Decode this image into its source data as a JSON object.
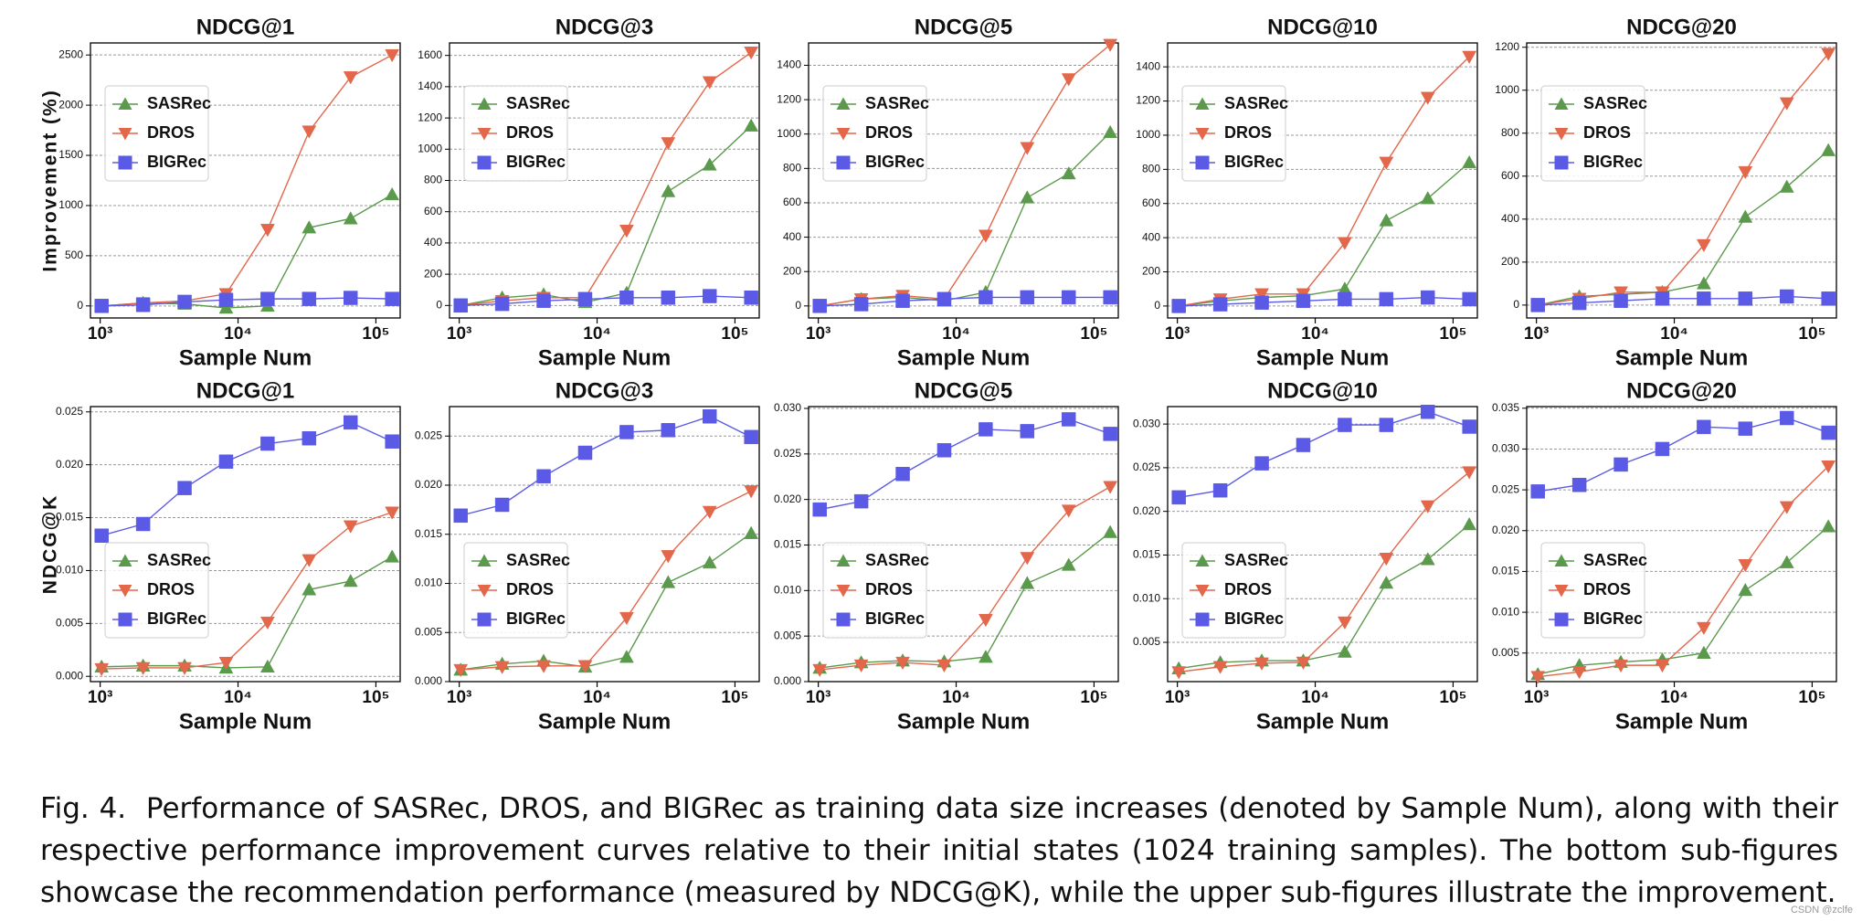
{
  "chart_data": [
    {
      "type": "line",
      "title": "NDCG@1",
      "xlabel": "Sample Num",
      "ylabel": "Improvement (%)",
      "log_x": true,
      "grid": true,
      "legend": "upper left",
      "x": [
        1024,
        2048,
        4096,
        8192,
        16384,
        32768,
        65536,
        131072
      ],
      "xlim": [
        850,
        150000
      ],
      "xticks": [
        {
          "value": 1000,
          "label": "10³"
        },
        {
          "value": 10000,
          "label": "10⁴"
        },
        {
          "value": 100000,
          "label": "10⁵"
        }
      ],
      "ylim": [
        -120,
        2620
      ],
      "yticks": [
        0,
        500,
        1000,
        1500,
        2000,
        2500
      ],
      "series": [
        {
          "name": "SASRec",
          "color": "#5b9a4c",
          "marker": "triangle-up",
          "values": [
            0,
            30,
            20,
            -20,
            0,
            780,
            870,
            1110
          ]
        },
        {
          "name": "DROS",
          "color": "#e2674b",
          "marker": "triangle-down",
          "values": [
            0,
            30,
            50,
            120,
            760,
            1740,
            2280,
            2500
          ]
        },
        {
          "name": "BIGRec",
          "color": "#5a5ae6",
          "marker": "square",
          "values": [
            0,
            10,
            40,
            60,
            70,
            70,
            80,
            70
          ]
        }
      ]
    },
    {
      "type": "line",
      "title": "NDCG@3",
      "xlabel": "Sample Num",
      "log_x": true,
      "grid": true,
      "legend": "upper left",
      "x": [
        1024,
        2048,
        4096,
        8192,
        16384,
        32768,
        65536,
        131072
      ],
      "xlim": [
        850,
        150000
      ],
      "xticks": [
        {
          "value": 1000,
          "label": "10³"
        },
        {
          "value": 10000,
          "label": "10⁴"
        },
        {
          "value": 100000,
          "label": "10⁵"
        }
      ],
      "ylim": [
        -80,
        1680
      ],
      "yticks": [
        0,
        200,
        400,
        600,
        800,
        1000,
        1200,
        1400,
        1600
      ],
      "series": [
        {
          "name": "SASRec",
          "color": "#5b9a4c",
          "marker": "triangle-up",
          "values": [
            0,
            50,
            70,
            20,
            80,
            730,
            900,
            1150
          ]
        },
        {
          "name": "DROS",
          "color": "#e2674b",
          "marker": "triangle-down",
          "values": [
            0,
            30,
            50,
            50,
            480,
            1040,
            1430,
            1620
          ]
        },
        {
          "name": "BIGRec",
          "color": "#5a5ae6",
          "marker": "square",
          "values": [
            0,
            10,
            30,
            40,
            50,
            50,
            60,
            50
          ]
        }
      ]
    },
    {
      "type": "line",
      "title": "NDCG@5",
      "xlabel": "Sample Num",
      "log_x": true,
      "grid": true,
      "legend": "upper left",
      "x": [
        1024,
        2048,
        4096,
        8192,
        16384,
        32768,
        65536,
        131072
      ],
      "xlim": [
        850,
        150000
      ],
      "xticks": [
        {
          "value": 1000,
          "label": "10³"
        },
        {
          "value": 10000,
          "label": "10⁴"
        },
        {
          "value": 100000,
          "label": "10⁵"
        }
      ],
      "ylim": [
        -70,
        1530
      ],
      "yticks": [
        0,
        200,
        400,
        600,
        800,
        1000,
        1200,
        1400
      ],
      "series": [
        {
          "name": "SASRec",
          "color": "#5b9a4c",
          "marker": "triangle-up",
          "values": [
            0,
            40,
            50,
            30,
            80,
            630,
            770,
            1010
          ]
        },
        {
          "name": "DROS",
          "color": "#e2674b",
          "marker": "triangle-down",
          "values": [
            0,
            40,
            60,
            40,
            410,
            920,
            1320,
            1520
          ]
        },
        {
          "name": "BIGRec",
          "color": "#5a5ae6",
          "marker": "square",
          "values": [
            0,
            10,
            30,
            40,
            50,
            50,
            50,
            50
          ]
        }
      ]
    },
    {
      "type": "line",
      "title": "NDCG@10",
      "xlabel": "Sample Num",
      "log_x": true,
      "grid": true,
      "legend": "upper left",
      "x": [
        1024,
        2048,
        4096,
        8192,
        16384,
        32768,
        65536,
        131072
      ],
      "xlim": [
        850,
        150000
      ],
      "xticks": [
        {
          "value": 1000,
          "label": "10³"
        },
        {
          "value": 10000,
          "label": "10⁴"
        },
        {
          "value": 100000,
          "label": "10⁵"
        }
      ],
      "ylim": [
        -70,
        1540
      ],
      "yticks": [
        0,
        200,
        400,
        600,
        800,
        1000,
        1200,
        1400
      ],
      "series": [
        {
          "name": "SASRec",
          "color": "#5b9a4c",
          "marker": "triangle-up",
          "values": [
            0,
            30,
            50,
            60,
            100,
            500,
            630,
            840
          ]
        },
        {
          "name": "DROS",
          "color": "#e2674b",
          "marker": "triangle-down",
          "values": [
            0,
            40,
            70,
            70,
            370,
            840,
            1220,
            1460
          ]
        },
        {
          "name": "BIGRec",
          "color": "#5a5ae6",
          "marker": "square",
          "values": [
            0,
            10,
            20,
            30,
            40,
            40,
            50,
            40
          ]
        }
      ]
    },
    {
      "type": "line",
      "title": "NDCG@20",
      "xlabel": "Sample Num",
      "log_x": true,
      "grid": true,
      "legend": "upper left",
      "x": [
        1024,
        2048,
        4096,
        8192,
        16384,
        32768,
        65536,
        131072
      ],
      "xlim": [
        850,
        150000
      ],
      "xticks": [
        {
          "value": 1000,
          "label": "10³"
        },
        {
          "value": 10000,
          "label": "10⁴"
        },
        {
          "value": 100000,
          "label": "10⁵"
        }
      ],
      "ylim": [
        -60,
        1220
      ],
      "yticks": [
        0,
        200,
        400,
        600,
        800,
        1000,
        1200
      ],
      "series": [
        {
          "name": "SASRec",
          "color": "#5b9a4c",
          "marker": "triangle-up",
          "values": [
            0,
            40,
            50,
            60,
            100,
            410,
            550,
            720
          ]
        },
        {
          "name": "DROS",
          "color": "#e2674b",
          "marker": "triangle-down",
          "values": [
            0,
            30,
            60,
            60,
            280,
            620,
            940,
            1170
          ]
        },
        {
          "name": "BIGRec",
          "color": "#5a5ae6",
          "marker": "square",
          "values": [
            0,
            10,
            20,
            30,
            30,
            30,
            40,
            30
          ]
        }
      ]
    },
    {
      "type": "line",
      "title": "NDCG@1",
      "xlabel": "Sample Num",
      "ylabel": "NDCG@K",
      "log_x": true,
      "grid": true,
      "legend": "lower left",
      "x": [
        1024,
        2048,
        4096,
        8192,
        16384,
        32768,
        65536,
        131072
      ],
      "xlim": [
        850,
        150000
      ],
      "xticks": [
        {
          "value": 1000,
          "label": "10³"
        },
        {
          "value": 10000,
          "label": "10⁴"
        },
        {
          "value": 100000,
          "label": "10⁵"
        }
      ],
      "ylim": [
        -0.0005,
        0.0255
      ],
      "yticks": [
        {
          "value": 0,
          "label": "0.000"
        },
        {
          "value": 0.005,
          "label": "0.005"
        },
        {
          "value": 0.01,
          "label": "0.010"
        },
        {
          "value": 0.015,
          "label": "0.015"
        },
        {
          "value": 0.02,
          "label": "0.020"
        },
        {
          "value": 0.025,
          "label": "0.025"
        }
      ],
      "series": [
        {
          "name": "SASRec",
          "color": "#5b9a4c",
          "marker": "triangle-up",
          "values": [
            0.0009,
            0.001,
            0.001,
            0.0008,
            0.0009,
            0.0082,
            0.009,
            0.0113
          ]
        },
        {
          "name": "DROS",
          "color": "#e2674b",
          "marker": "triangle-down",
          "values": [
            0.0007,
            0.0008,
            0.0008,
            0.0013,
            0.0051,
            0.011,
            0.0142,
            0.0155
          ]
        },
        {
          "name": "BIGRec",
          "color": "#5a5ae6",
          "marker": "square",
          "values": [
            0.0133,
            0.0144,
            0.0178,
            0.0203,
            0.022,
            0.0225,
            0.024,
            0.0222
          ]
        }
      ]
    },
    {
      "type": "line",
      "title": "NDCG@3",
      "xlabel": "Sample Num",
      "log_x": true,
      "grid": true,
      "legend": "lower left",
      "x": [
        1024,
        2048,
        4096,
        8192,
        16384,
        32768,
        65536,
        131072
      ],
      "xlim": [
        850,
        150000
      ],
      "xticks": [
        {
          "value": 1000,
          "label": "10³"
        },
        {
          "value": 10000,
          "label": "10⁴"
        },
        {
          "value": 100000,
          "label": "10⁵"
        }
      ],
      "ylim": [
        0,
        0.028
      ],
      "yticks": [
        {
          "value": 0,
          "label": "0.000"
        },
        {
          "value": 0.005,
          "label": "0.005"
        },
        {
          "value": 0.01,
          "label": "0.010"
        },
        {
          "value": 0.015,
          "label": "0.015"
        },
        {
          "value": 0.02,
          "label": "0.020"
        },
        {
          "value": 0.025,
          "label": "0.025"
        }
      ],
      "series": [
        {
          "name": "SASRec",
          "color": "#5b9a4c",
          "marker": "triangle-up",
          "values": [
            0.0012,
            0.0018,
            0.0021,
            0.0015,
            0.0025,
            0.0101,
            0.0121,
            0.0151
          ]
        },
        {
          "name": "DROS",
          "color": "#e2674b",
          "marker": "triangle-down",
          "values": [
            0.0012,
            0.0015,
            0.0016,
            0.0016,
            0.0065,
            0.0128,
            0.0173,
            0.0194
          ]
        },
        {
          "name": "BIGRec",
          "color": "#5a5ae6",
          "marker": "square",
          "values": [
            0.0169,
            0.018,
            0.0209,
            0.0233,
            0.0254,
            0.0256,
            0.027,
            0.0249
          ]
        }
      ]
    },
    {
      "type": "line",
      "title": "NDCG@5",
      "xlabel": "Sample Num",
      "log_x": true,
      "grid": true,
      "legend": "lower left",
      "x": [
        1024,
        2048,
        4096,
        8192,
        16384,
        32768,
        65536,
        131072
      ],
      "xlim": [
        850,
        150000
      ],
      "xticks": [
        {
          "value": 1000,
          "label": "10³"
        },
        {
          "value": 10000,
          "label": "10⁴"
        },
        {
          "value": 100000,
          "label": "10⁵"
        }
      ],
      "ylim": [
        0,
        0.0302
      ],
      "yticks": [
        {
          "value": 0,
          "label": "0.000"
        },
        {
          "value": 0.005,
          "label": "0.005"
        },
        {
          "value": 0.01,
          "label": "0.010"
        },
        {
          "value": 0.015,
          "label": "0.015"
        },
        {
          "value": 0.02,
          "label": "0.020"
        },
        {
          "value": 0.025,
          "label": "0.025"
        },
        {
          "value": 0.03,
          "label": "0.030"
        }
      ],
      "series": [
        {
          "name": "SASRec",
          "color": "#5b9a4c",
          "marker": "triangle-up",
          "values": [
            0.0015,
            0.0021,
            0.0023,
            0.0022,
            0.0027,
            0.0108,
            0.0128,
            0.0164
          ]
        },
        {
          "name": "DROS",
          "color": "#e2674b",
          "marker": "triangle-down",
          "values": [
            0.0013,
            0.0018,
            0.0021,
            0.0018,
            0.0068,
            0.0136,
            0.0188,
            0.0214
          ]
        },
        {
          "name": "BIGRec",
          "color": "#5a5ae6",
          "marker": "square",
          "values": [
            0.0189,
            0.0198,
            0.0228,
            0.0254,
            0.0277,
            0.0275,
            0.0288,
            0.0272
          ]
        }
      ]
    },
    {
      "type": "line",
      "title": "NDCG@10",
      "xlabel": "Sample Num",
      "log_x": true,
      "grid": true,
      "legend": "lower left",
      "x": [
        1024,
        2048,
        4096,
        8192,
        16384,
        32768,
        65536,
        131072
      ],
      "xlim": [
        850,
        150000
      ],
      "xticks": [
        {
          "value": 1000,
          "label": "10³"
        },
        {
          "value": 10000,
          "label": "10⁴"
        },
        {
          "value": 100000,
          "label": "10⁵"
        }
      ],
      "ylim": [
        0.0005,
        0.032
      ],
      "yticks": [
        {
          "value": 0.005,
          "label": "0.005"
        },
        {
          "value": 0.01,
          "label": "0.010"
        },
        {
          "value": 0.015,
          "label": "0.015"
        },
        {
          "value": 0.02,
          "label": "0.020"
        },
        {
          "value": 0.025,
          "label": "0.025"
        },
        {
          "value": 0.03,
          "label": "0.030"
        }
      ],
      "series": [
        {
          "name": "SASRec",
          "color": "#5b9a4c",
          "marker": "triangle-up",
          "values": [
            0.002,
            0.0027,
            0.0029,
            0.0029,
            0.0039,
            0.0118,
            0.0145,
            0.0185
          ]
        },
        {
          "name": "DROS",
          "color": "#e2674b",
          "marker": "triangle-down",
          "values": [
            0.0016,
            0.0022,
            0.0026,
            0.0027,
            0.0073,
            0.0146,
            0.0206,
            0.0245
          ]
        },
        {
          "name": "BIGRec",
          "color": "#5a5ae6",
          "marker": "square",
          "values": [
            0.0216,
            0.0224,
            0.0255,
            0.0276,
            0.0299,
            0.0299,
            0.0314,
            0.0297
          ]
        }
      ]
    },
    {
      "type": "line",
      "title": "NDCG@20",
      "xlabel": "Sample Num",
      "log_x": true,
      "grid": true,
      "legend": "lower left",
      "x": [
        1024,
        2048,
        4096,
        8192,
        16384,
        32768,
        65536,
        131072
      ],
      "xlim": [
        850,
        150000
      ],
      "xticks": [
        {
          "value": 1000,
          "label": "10³"
        },
        {
          "value": 10000,
          "label": "10⁴"
        },
        {
          "value": 100000,
          "label": "10⁵"
        }
      ],
      "ylim": [
        0.0015,
        0.0352
      ],
      "yticks": [
        {
          "value": 0.005,
          "label": "0.005"
        },
        {
          "value": 0.01,
          "label": "0.010"
        },
        {
          "value": 0.015,
          "label": "0.015"
        },
        {
          "value": 0.02,
          "label": "0.020"
        },
        {
          "value": 0.025,
          "label": "0.025"
        },
        {
          "value": 0.03,
          "label": "0.030"
        },
        {
          "value": 0.035,
          "label": "0.035"
        }
      ],
      "series": [
        {
          "name": "SASRec",
          "color": "#5b9a4c",
          "marker": "triangle-up",
          "values": [
            0.0024,
            0.0035,
            0.0039,
            0.0042,
            0.005,
            0.0127,
            0.0161,
            0.0205
          ]
        },
        {
          "name": "DROS",
          "color": "#e2674b",
          "marker": "triangle-down",
          "values": [
            0.0021,
            0.0027,
            0.0035,
            0.0035,
            0.0081,
            0.0158,
            0.0229,
            0.0279
          ]
        },
        {
          "name": "BIGRec",
          "color": "#5a5ae6",
          "marker": "square",
          "values": [
            0.0248,
            0.0256,
            0.0281,
            0.03,
            0.0327,
            0.0325,
            0.0338,
            0.032
          ]
        }
      ]
    }
  ],
  "caption": "Fig. 4.  Performance of SASRec, DROS, and BIGRec as training data size increases (denoted by Sample Num), along with their respective performance improvement curves relative to their initial states (1024 training samples). The bottom sub-figures showcase the recommendation performance (measured by NDCG@K), while the upper sub-figures illustrate the improvement.",
  "watermark": "CSDN @zclfe"
}
